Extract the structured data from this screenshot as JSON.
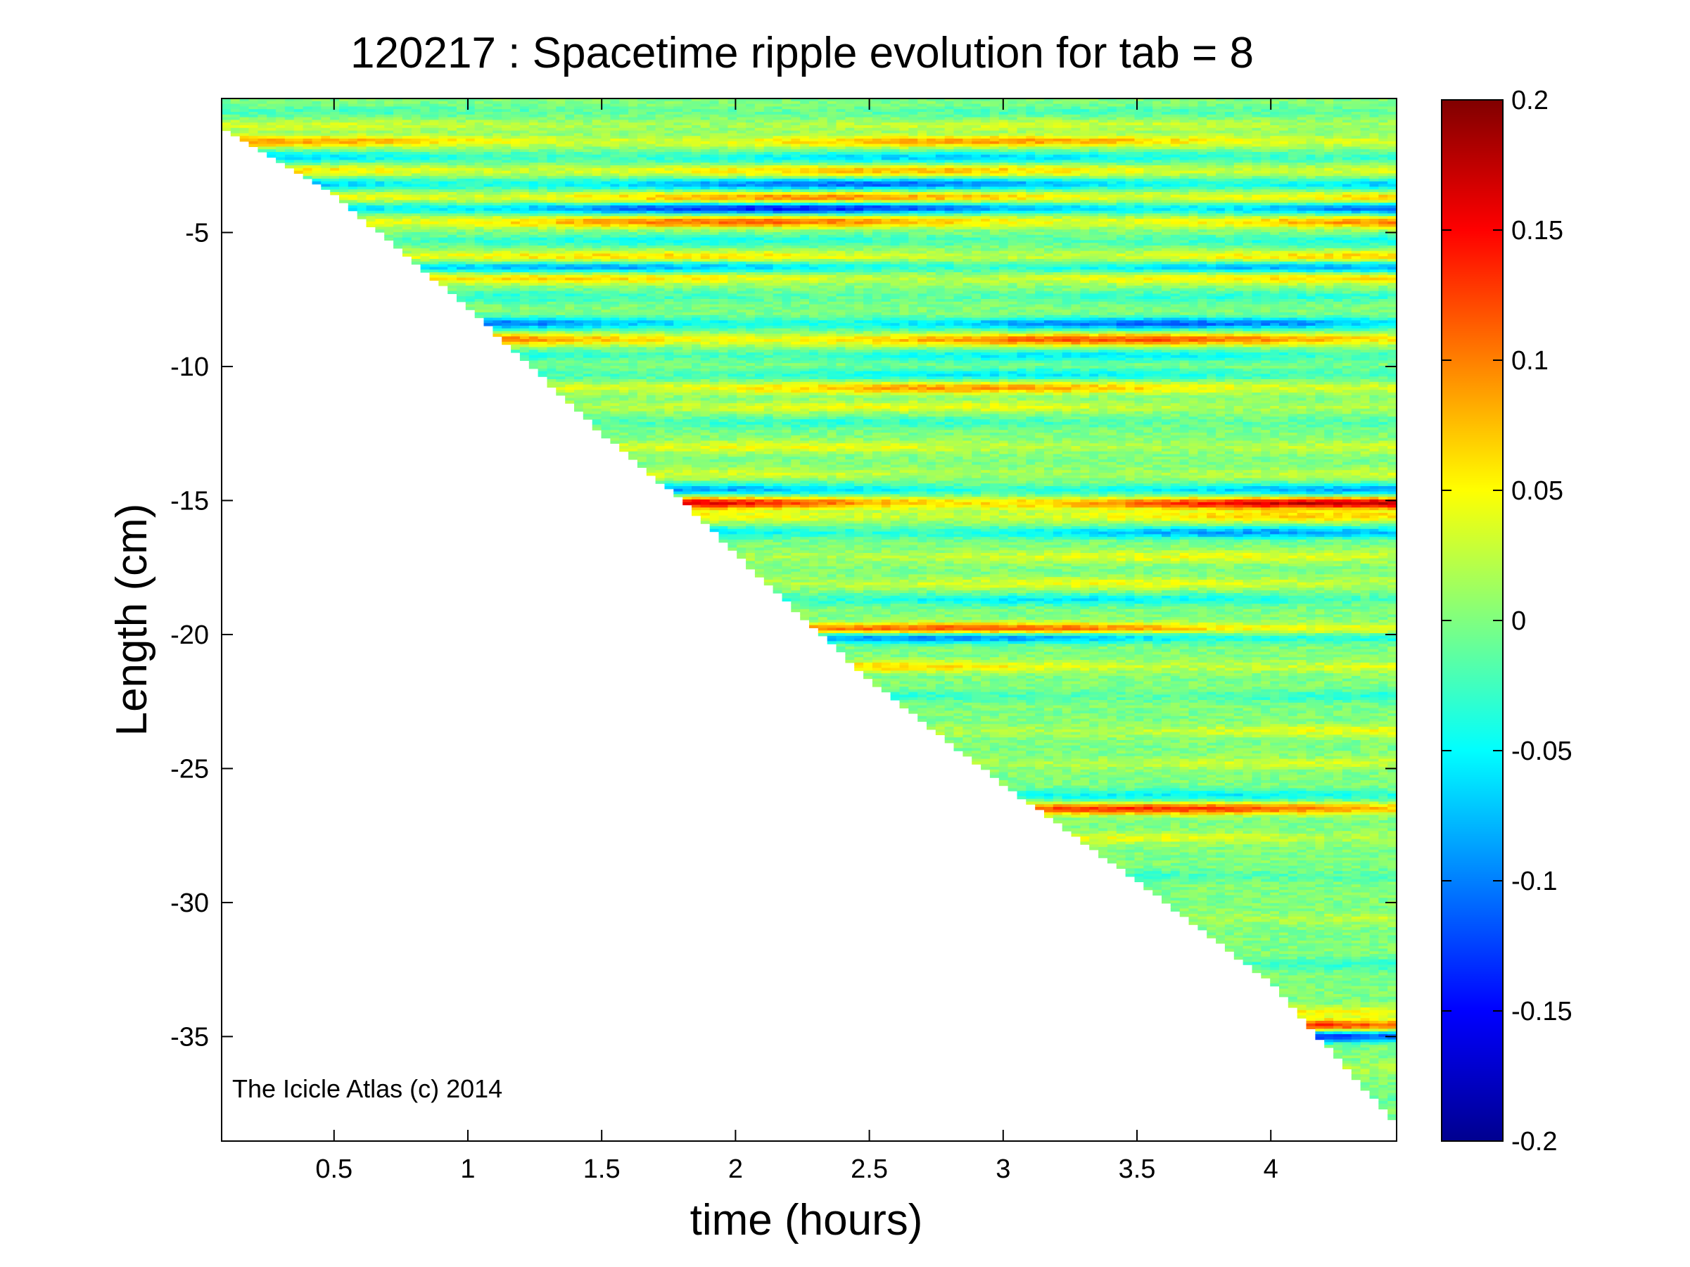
{
  "chart_data": {
    "type": "heatmap",
    "title": "120217 : Spacetime ripple evolution for tab = 8",
    "xlabel": "time (hours)",
    "ylabel": "Length (cm)",
    "xlim": [
      0.08,
      4.47
    ],
    "ylim": [
      -38.9,
      0
    ],
    "xticks": [
      0.5,
      1,
      1.5,
      2,
      2.5,
      3,
      3.5,
      4
    ],
    "xtick_labels": [
      "0.5",
      "1",
      "1.5",
      "2",
      "2.5",
      "3",
      "3.5",
      "4"
    ],
    "yticks": [
      -5,
      -10,
      -15,
      -20,
      -25,
      -30,
      -35
    ],
    "ytick_labels": [
      "-5",
      "-10",
      "-15",
      "-20",
      "-25",
      "-30",
      "-35"
    ],
    "grid": false,
    "colorbar": {
      "colormap": "jet",
      "clim": [
        -0.2,
        0.2
      ],
      "ticks": [
        0.2,
        0.15,
        0.1,
        0.05,
        0,
        -0.05,
        -0.1,
        -0.15,
        -0.2
      ],
      "tick_labels": [
        "0.2",
        "0.15",
        "0.1",
        "0.05",
        "0",
        "-0.05",
        "-0.1",
        "-0.15",
        "-0.2"
      ],
      "placement": "right"
    },
    "annotation": "The Icicle Atlas (c) 2014",
    "tip_front": [
      [
        0.08,
        -1.1
      ],
      [
        0.5,
        -3.6
      ],
      [
        1.0,
        -7.8
      ],
      [
        1.5,
        -12.5
      ],
      [
        1.8,
        -15.0
      ],
      [
        2.0,
        -17.0
      ],
      [
        2.5,
        -21.7
      ],
      [
        3.0,
        -25.6
      ],
      [
        3.5,
        -29.2
      ],
      [
        4.0,
        -33.0
      ],
      [
        4.47,
        -38.3
      ]
    ],
    "ripple_bands": [
      {
        "y": -0.5,
        "amp": -0.02
      },
      {
        "y": -1.0,
        "amp": 0.03
      },
      {
        "y": -1.6,
        "amp": 0.08
      },
      {
        "y": -2.2,
        "amp": -0.06
      },
      {
        "y": -2.7,
        "amp": 0.07
      },
      {
        "y": -3.2,
        "amp": -0.1
      },
      {
        "y": -3.7,
        "amp": 0.09
      },
      {
        "y": -4.1,
        "amp": -0.13
      },
      {
        "y": -4.6,
        "amp": 0.1
      },
      {
        "y": -5.3,
        "amp": -0.04
      },
      {
        "y": -5.9,
        "amp": 0.06
      },
      {
        "y": -6.3,
        "amp": -0.08
      },
      {
        "y": -6.7,
        "amp": 0.06
      },
      {
        "y": -7.4,
        "amp": -0.03
      },
      {
        "y": -8.4,
        "amp": -0.1
      },
      {
        "y": -9.0,
        "amp": 0.11
      },
      {
        "y": -9.6,
        "amp": -0.05
      },
      {
        "y": -10.3,
        "amp": -0.05
      },
      {
        "y": -10.8,
        "amp": 0.08
      },
      {
        "y": -11.5,
        "amp": 0.04
      },
      {
        "y": -12.1,
        "amp": -0.03
      },
      {
        "y": -13.0,
        "amp": 0.04
      },
      {
        "y": -14.0,
        "amp": 0.03
      },
      {
        "y": -14.6,
        "amp": -0.08
      },
      {
        "y": -15.1,
        "amp": 0.16
      },
      {
        "y": -15.6,
        "amp": 0.06
      },
      {
        "y": -16.2,
        "amp": -0.08
      },
      {
        "y": -17.1,
        "amp": 0.04
      },
      {
        "y": -18.1,
        "amp": 0.04
      },
      {
        "y": -18.7,
        "amp": -0.05
      },
      {
        "y": -19.8,
        "amp": 0.12
      },
      {
        "y": -20.1,
        "amp": -0.1
      },
      {
        "y": -21.2,
        "amp": 0.06
      },
      {
        "y": -22.3,
        "amp": -0.04
      },
      {
        "y": -23.6,
        "amp": 0.04
      },
      {
        "y": -24.8,
        "amp": 0.03
      },
      {
        "y": -26.0,
        "amp": -0.05
      },
      {
        "y": -26.5,
        "amp": 0.12
      },
      {
        "y": -27.6,
        "amp": 0.04
      },
      {
        "y": -29.0,
        "amp": -0.04
      },
      {
        "y": -30.6,
        "amp": 0.03
      },
      {
        "y": -32.3,
        "amp": -0.03
      },
      {
        "y": -34.1,
        "amp": 0.05
      },
      {
        "y": -34.6,
        "amp": 0.14
      },
      {
        "y": -35.0,
        "amp": -0.16
      },
      {
        "y": -36.2,
        "amp": 0.04
      },
      {
        "y": -37.4,
        "amp": -0.03
      }
    ]
  }
}
